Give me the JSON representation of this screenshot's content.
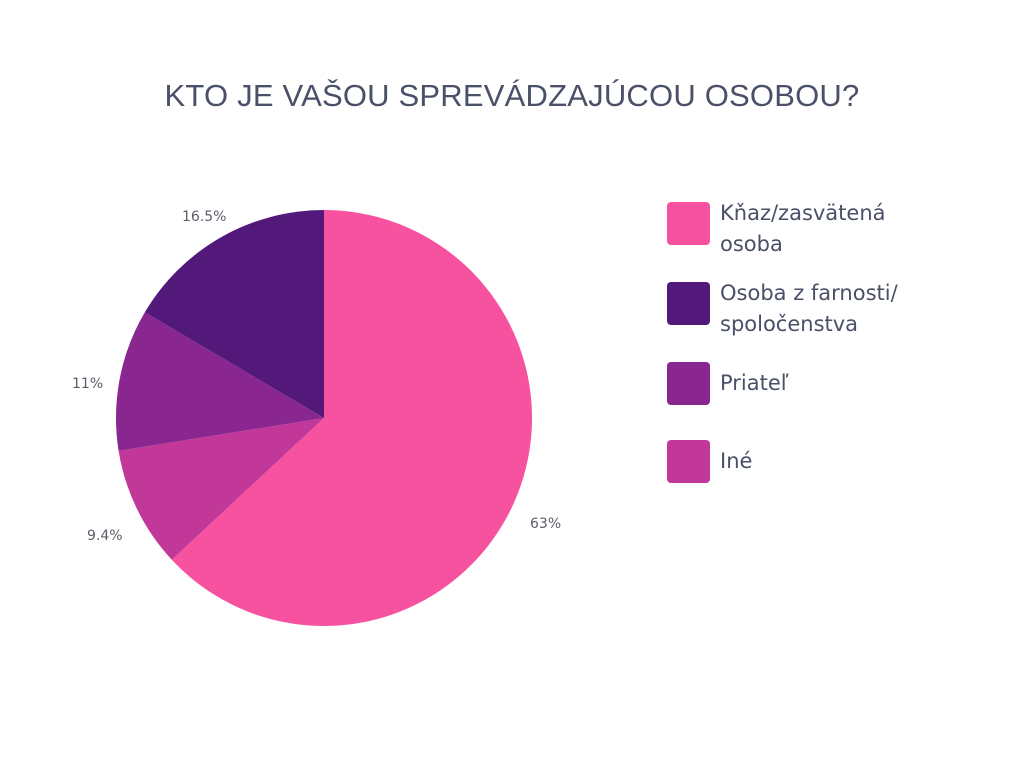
{
  "title": "KTO JE VAŠOU SPREVÁDZAJÚCOU OSOBOU?",
  "legend": [
    {
      "label": "Kňaz/zasvätená osoba",
      "color": "#f7529f"
    },
    {
      "label": "Osoba z farnosti/ spoločenstva",
      "color": "#52187a"
    },
    {
      "label": "Priateľ",
      "color": "#8a268f"
    },
    {
      "label": "Iné",
      "color": "#c13899"
    }
  ],
  "labels": {
    "a": "63%",
    "b": "9.4%",
    "c": "11%",
    "d": "16.5%"
  },
  "chart_data": {
    "type": "pie",
    "title": "KTO JE VAŠOU SPREVÁDZAJÚCOU OSOBOU?",
    "categories": [
      "Kňaz/zasvätená osoba",
      "Iné",
      "Priateľ",
      "Osoba z farnosti/ spoločenstva"
    ],
    "values": [
      63,
      9.4,
      11,
      16.5
    ],
    "colors": [
      "#f7529f",
      "#c13899",
      "#8a268f",
      "#52187a"
    ],
    "value_labels": [
      "63%",
      "9.4%",
      "11%",
      "16.5%"
    ],
    "start_angle": "top (12 o'clock)",
    "direction": "clockwise",
    "legend_position": "right"
  }
}
